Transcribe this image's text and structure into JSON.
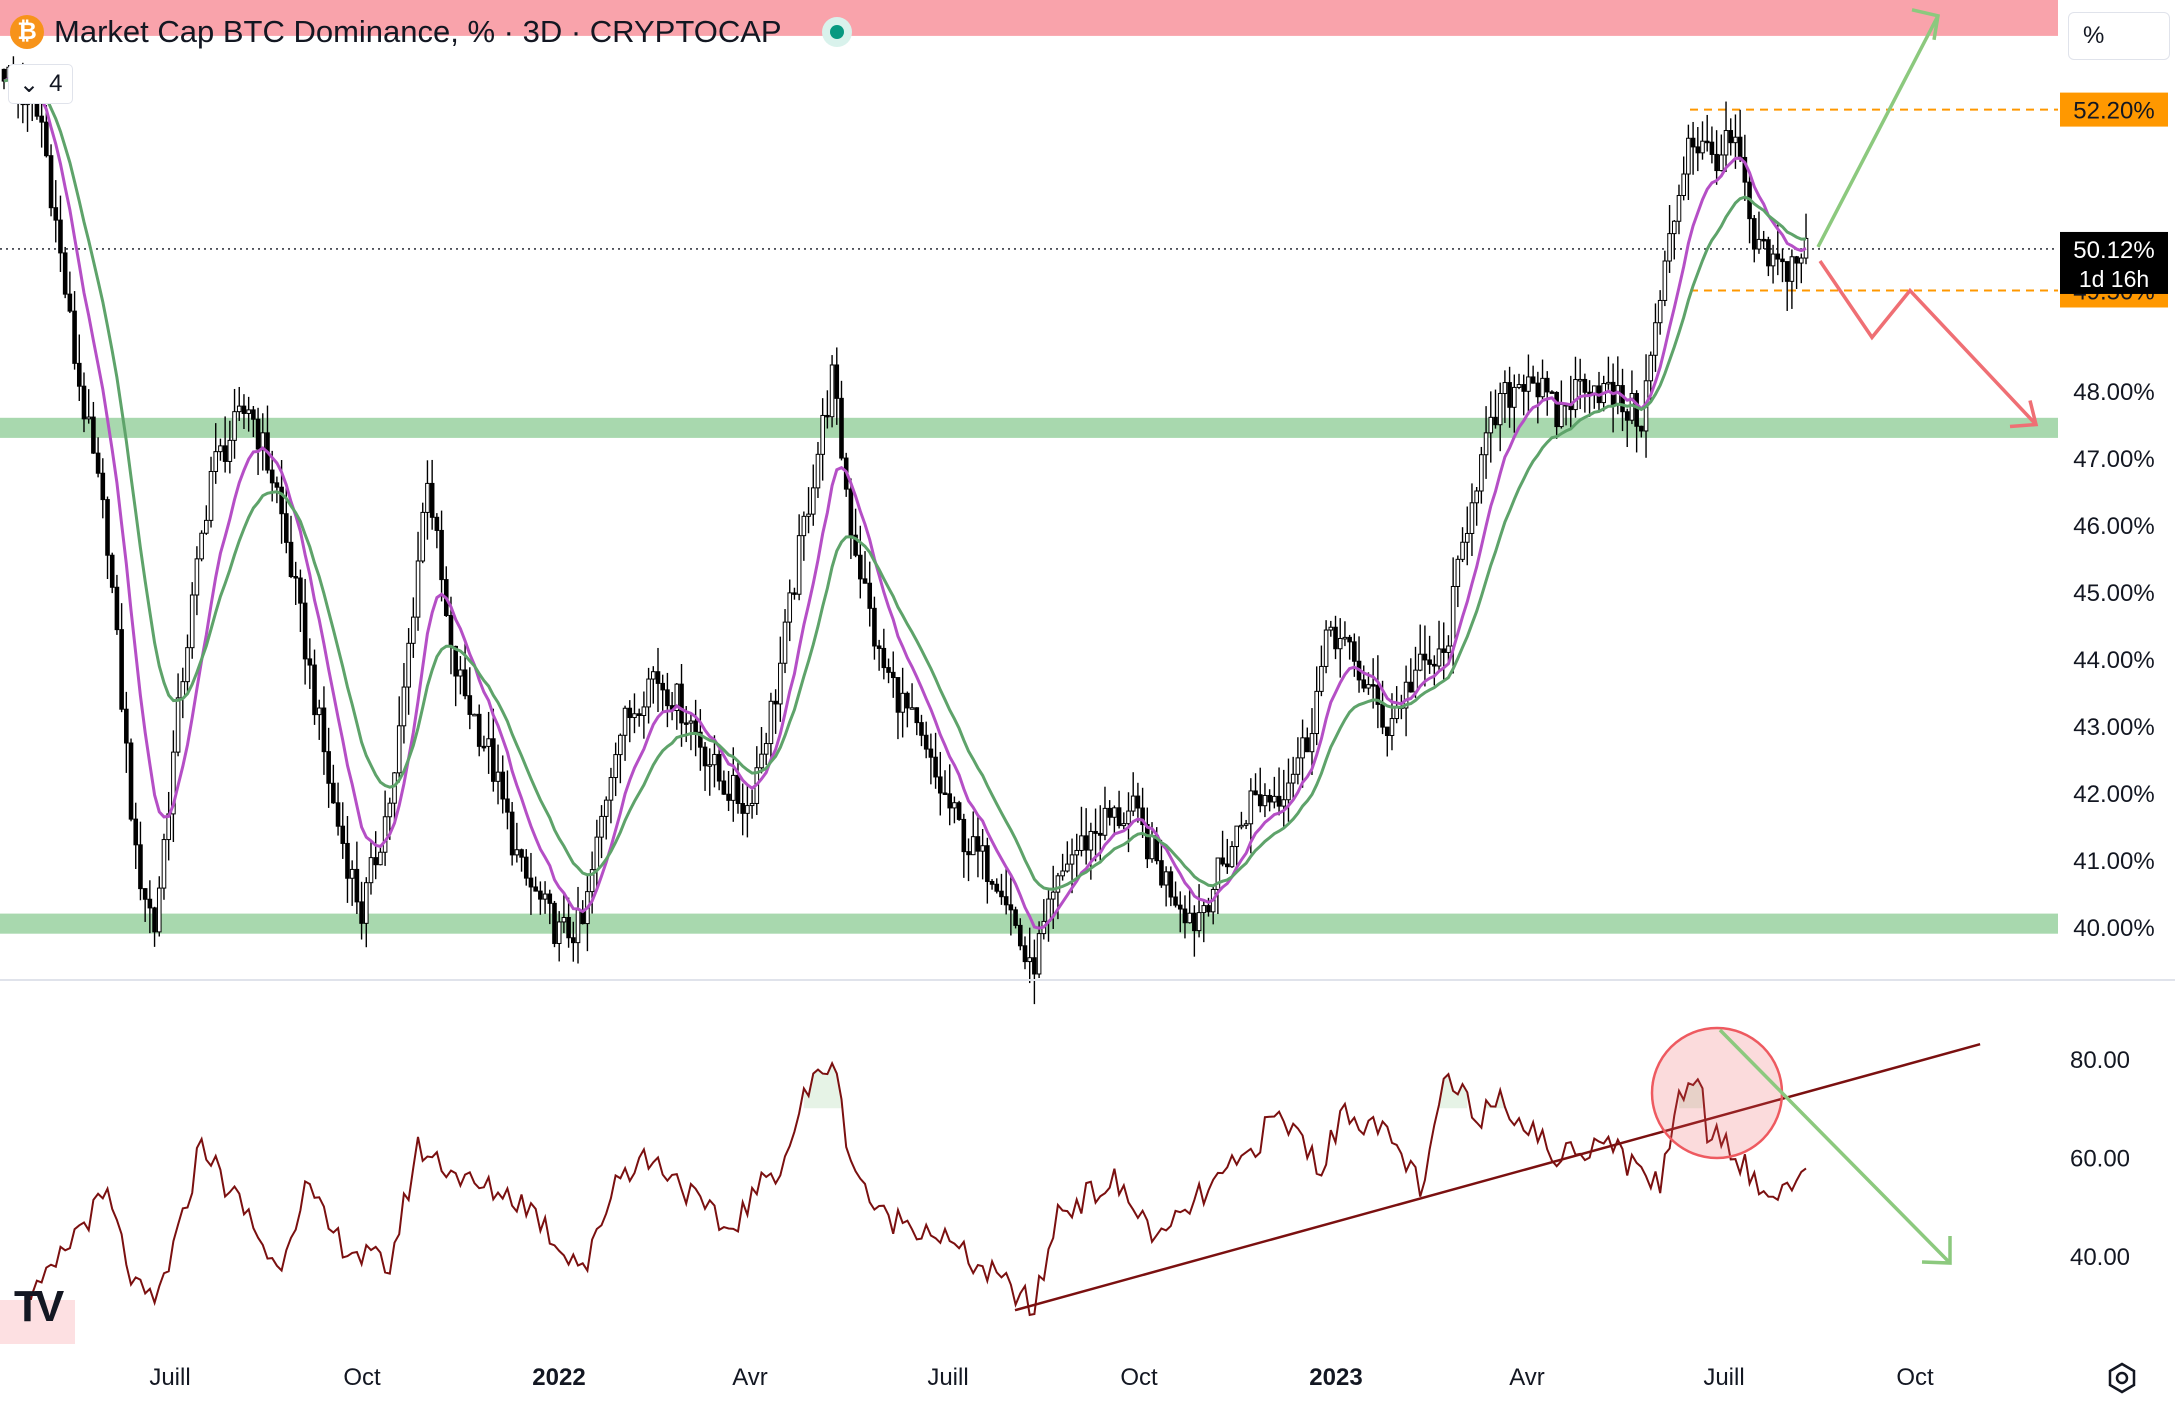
{
  "header": {
    "title": "Market Cap BTC Dominance, % · 3D · CRYPTOCAP",
    "logo_icon": "bitcoin-logo-icon",
    "indicator_count": "4",
    "scale_button": "%"
  },
  "colors": {
    "candle": "#000000",
    "ema_fast": "#b54fc6",
    "ema_slow": "#5ea36a",
    "support_zone": "#a8d8ae",
    "resistance_zone": "#f9a3ab",
    "level_orange": "#ff9800",
    "rsi_line": "#7b1010",
    "arrow_up": "#8cc97e",
    "arrow_down": "#ef6f74",
    "circle": "#ee5a60"
  },
  "chart_data": {
    "type": "candlestick",
    "title": "Market Cap BTC Dominance, % · 3D · CRYPTOCAP",
    "xlabel": "",
    "ylabel": "",
    "x_tick_labels": [
      "Juill",
      "Oct",
      "2022",
      "Avr",
      "Juill",
      "Oct",
      "2023",
      "Avr",
      "Juill",
      "Oct"
    ],
    "y_tick_labels": [
      "48.00%",
      "47.00%",
      "46.00%",
      "45.00%",
      "44.00%",
      "43.00%",
      "42.00%",
      "41.00%",
      "40.00%"
    ],
    "ylim": [
      39.1,
      54.0
    ],
    "current_price": {
      "label": "50.12%",
      "value": 50.12,
      "countdown": "1d 16h"
    },
    "levels": [
      {
        "label": "52.20%",
        "value": 52.2
      },
      {
        "label": "49.50%",
        "value": 49.5
      }
    ],
    "zones": [
      {
        "kind": "resistance",
        "from": 53.3,
        "to": 53.9
      },
      {
        "kind": "support",
        "from": 47.3,
        "to": 47.6
      },
      {
        "kind": "support",
        "from": 39.9,
        "to": 40.2
      }
    ],
    "price_anchors": [
      [
        0,
        52.8
      ],
      [
        8,
        52.0
      ],
      [
        15,
        48.5
      ],
      [
        22,
        45.8
      ],
      [
        28,
        41.0
      ],
      [
        32,
        40.0
      ],
      [
        38,
        43.8
      ],
      [
        44,
        46.8
      ],
      [
        52,
        47.8
      ],
      [
        58,
        46.5
      ],
      [
        64,
        44.2
      ],
      [
        70,
        41.8
      ],
      [
        76,
        40.2
      ],
      [
        83,
        42.2
      ],
      [
        90,
        46.8
      ],
      [
        95,
        44.0
      ],
      [
        103,
        42.6
      ],
      [
        110,
        40.8
      ],
      [
        118,
        39.9
      ],
      [
        123,
        40.0
      ],
      [
        130,
        42.8
      ],
      [
        138,
        43.8
      ],
      [
        145,
        43.2
      ],
      [
        152,
        42.2
      ],
      [
        158,
        41.8
      ],
      [
        164,
        43.5
      ],
      [
        170,
        46.0
      ],
      [
        176,
        48.2
      ],
      [
        180,
        46.0
      ],
      [
        186,
        44.0
      ],
      [
        192,
        43.2
      ],
      [
        198,
        42.2
      ],
      [
        205,
        41.2
      ],
      [
        212,
        40.7
      ],
      [
        218,
        39.3
      ],
      [
        226,
        41.0
      ],
      [
        234,
        41.6
      ],
      [
        240,
        41.7
      ],
      [
        246,
        40.8
      ],
      [
        253,
        40.1
      ],
      [
        259,
        40.9
      ],
      [
        265,
        41.9
      ],
      [
        271,
        42.0
      ],
      [
        277,
        42.8
      ],
      [
        282,
        44.5
      ],
      [
        288,
        43.8
      ],
      [
        294,
        43.0
      ],
      [
        300,
        43.8
      ],
      [
        306,
        44.0
      ],
      [
        312,
        46.5
      ],
      [
        318,
        47.8
      ],
      [
        324,
        48.3
      ],
      [
        330,
        47.6
      ],
      [
        336,
        48.2
      ],
      [
        342,
        47.9
      ],
      [
        348,
        47.6
      ],
      [
        353,
        49.8
      ],
      [
        358,
        51.8
      ],
      [
        363,
        51.5
      ],
      [
        368,
        51.7
      ],
      [
        372,
        50.1
      ],
      [
        378,
        49.8
      ],
      [
        383,
        50.12
      ]
    ],
    "indicator_ema": [
      {
        "name": "",
        "period": 10,
        "color": "#b54fc6"
      },
      {
        "name": "",
        "period": 20,
        "color": "#5ea36a"
      }
    ],
    "rsi": {
      "y_tick_labels": [
        "80.00",
        "60.00",
        "40.00"
      ],
      "ylim": [
        22,
        88
      ],
      "overbought": 70,
      "anchors": [
        [
          0,
          27
        ],
        [
          5,
          30
        ],
        [
          10,
          36
        ],
        [
          16,
          46
        ],
        [
          22,
          52
        ],
        [
          28,
          33
        ],
        [
          32,
          30
        ],
        [
          38,
          47
        ],
        [
          42,
          64
        ],
        [
          46,
          56
        ],
        [
          52,
          48
        ],
        [
          58,
          37
        ],
        [
          64,
          54
        ],
        [
          70,
          44
        ],
        [
          76,
          40
        ],
        [
          82,
          38
        ],
        [
          88,
          62
        ],
        [
          93,
          59
        ],
        [
          100,
          54
        ],
        [
          106,
          53
        ],
        [
          112,
          50
        ],
        [
          118,
          42
        ],
        [
          124,
          38
        ],
        [
          130,
          56
        ],
        [
          136,
          60
        ],
        [
          142,
          57
        ],
        [
          148,
          50
        ],
        [
          154,
          45
        ],
        [
          160,
          53
        ],
        [
          166,
          60
        ],
        [
          170,
          72
        ],
        [
          174,
          78
        ],
        [
          176,
          80
        ],
        [
          180,
          60
        ],
        [
          186,
          48
        ],
        [
          192,
          47
        ],
        [
          198,
          45
        ],
        [
          204,
          40
        ],
        [
          210,
          36
        ],
        [
          216,
          32
        ],
        [
          219,
          29
        ],
        [
          224,
          49
        ],
        [
          230,
          52
        ],
        [
          236,
          55
        ],
        [
          240,
          50
        ],
        [
          246,
          43
        ],
        [
          252,
          50
        ],
        [
          258,
          55
        ],
        [
          264,
          60
        ],
        [
          270,
          68
        ],
        [
          274,
          66
        ],
        [
          280,
          58
        ],
        [
          285,
          70
        ],
        [
          290,
          67
        ],
        [
          296,
          62
        ],
        [
          302,
          53
        ],
        [
          306,
          76
        ],
        [
          310,
          72
        ],
        [
          314,
          69
        ],
        [
          318,
          73
        ],
        [
          324,
          66
        ],
        [
          330,
          60
        ],
        [
          336,
          62
        ],
        [
          340,
          65
        ],
        [
          346,
          58
        ],
        [
          352,
          55
        ],
        [
          356,
          72
        ],
        [
          360,
          78
        ],
        [
          362,
          66
        ],
        [
          366,
          64
        ],
        [
          370,
          58
        ],
        [
          374,
          52
        ],
        [
          378,
          54
        ],
        [
          383,
          55
        ]
      ],
      "trendline": {
        "from": [
          217,
          29
        ],
        "to": [
          420,
          83
        ]
      }
    },
    "annotations": [
      {
        "kind": "arrow",
        "direction": "up",
        "color": "green"
      },
      {
        "kind": "arrow",
        "direction": "down",
        "color": "red"
      },
      {
        "kind": "arrow",
        "direction": "down",
        "color": "green",
        "pane": "rsi"
      },
      {
        "kind": "circle",
        "pane": "rsi",
        "around": "RSI peak near 80"
      }
    ]
  }
}
